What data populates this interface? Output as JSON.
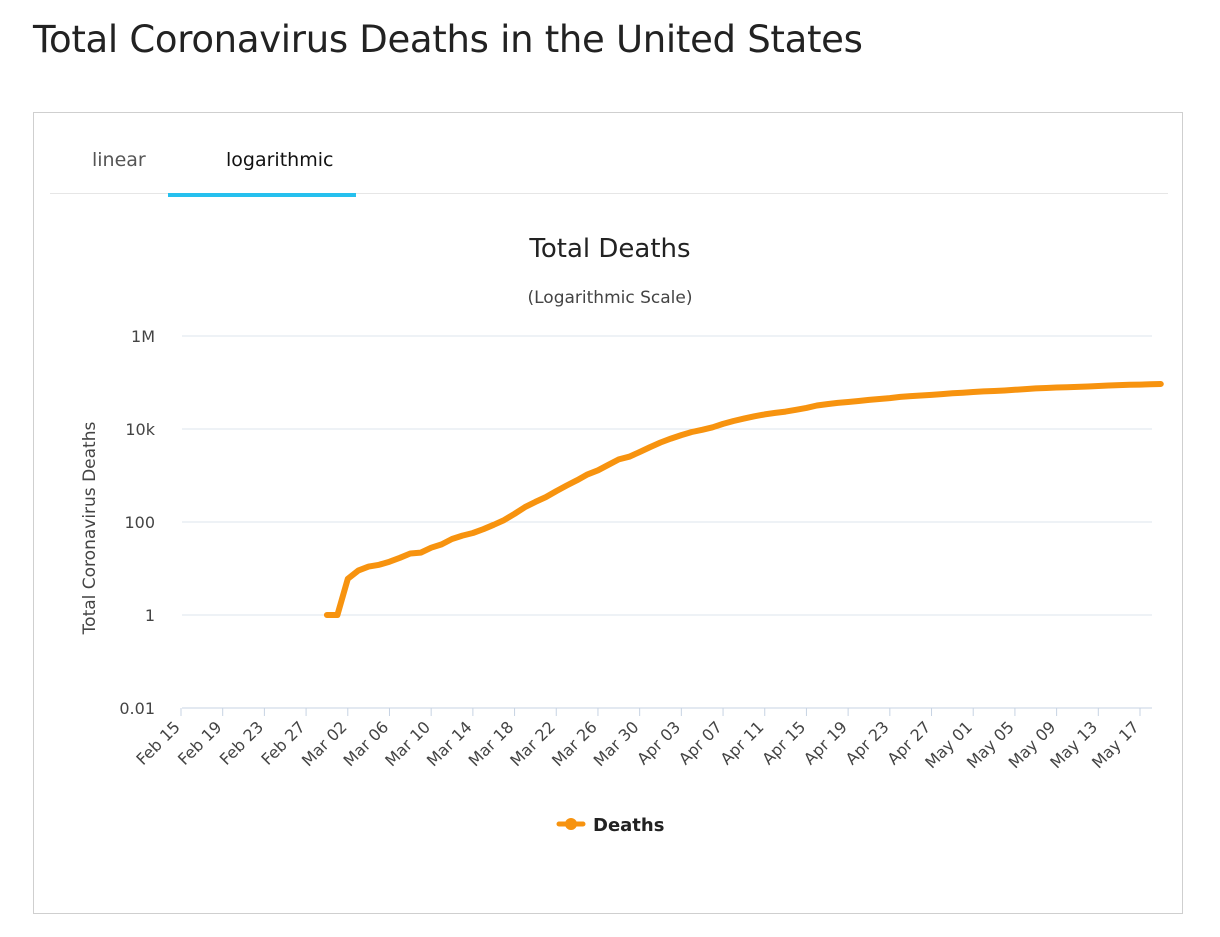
{
  "page": {
    "title": "Total Coronavirus Deaths in the United States"
  },
  "tabs": [
    {
      "label": "linear",
      "active": false
    },
    {
      "label": "logarithmic",
      "active": true
    }
  ],
  "colors": {
    "series": "#f7930f",
    "tab_accent": "#26c0ee",
    "grid": "#dde4ee"
  },
  "chart_data": {
    "type": "line",
    "title": "Total Deaths",
    "subtitle": "(Logarithmic Scale)",
    "ylabel": "Total Coronavirus Deaths",
    "xlabel": "",
    "yscale": "log",
    "ylim": [
      0.01,
      1000000
    ],
    "y_ticks": [
      {
        "value": 1000000,
        "label": "1M"
      },
      {
        "value": 10000,
        "label": "10k"
      },
      {
        "value": 100,
        "label": "100"
      },
      {
        "value": 1,
        "label": "1"
      },
      {
        "value": 0.01,
        "label": "0.01"
      }
    ],
    "x_ticks": [
      "Feb 15",
      "Feb 19",
      "Feb 23",
      "Feb 27",
      "Mar 02",
      "Mar 06",
      "Mar 10",
      "Mar 14",
      "Mar 18",
      "Mar 22",
      "Mar 26",
      "Mar 30",
      "Apr 03",
      "Apr 07",
      "Apr 11",
      "Apr 15",
      "Apr 19",
      "Apr 23",
      "Apr 27",
      "May 01",
      "May 05",
      "May 09",
      "May 13",
      "May 17"
    ],
    "grid": true,
    "legend": "bottom-center",
    "series": [
      {
        "name": "Deaths",
        "x": [
          "Feb 29",
          "Mar 01",
          "Mar 02",
          "Mar 03",
          "Mar 04",
          "Mar 05",
          "Mar 06",
          "Mar 07",
          "Mar 08",
          "Mar 09",
          "Mar 10",
          "Mar 11",
          "Mar 12",
          "Mar 13",
          "Mar 14",
          "Mar 15",
          "Mar 16",
          "Mar 17",
          "Mar 18",
          "Mar 19",
          "Mar 20",
          "Mar 21",
          "Mar 22",
          "Mar 23",
          "Mar 24",
          "Mar 25",
          "Mar 26",
          "Mar 27",
          "Mar 28",
          "Mar 29",
          "Mar 30",
          "Mar 31",
          "Apr 01",
          "Apr 02",
          "Apr 03",
          "Apr 04",
          "Apr 05",
          "Apr 06",
          "Apr 07",
          "Apr 08",
          "Apr 09",
          "Apr 10",
          "Apr 11",
          "Apr 12",
          "Apr 13",
          "Apr 14",
          "Apr 15",
          "Apr 16",
          "Apr 17",
          "Apr 18",
          "Apr 19",
          "Apr 20",
          "Apr 21",
          "Apr 22",
          "Apr 23",
          "Apr 24",
          "Apr 25",
          "Apr 26",
          "Apr 27",
          "Apr 28",
          "Apr 29",
          "Apr 30",
          "May 01",
          "May 02",
          "May 03",
          "May 04",
          "May 05",
          "May 06",
          "May 07",
          "May 08",
          "May 09",
          "May 10",
          "May 11",
          "May 12",
          "May 13",
          "May 14",
          "May 15",
          "May 16",
          "May 17",
          "May 18",
          "May 19"
        ],
        "y": [
          1,
          1,
          6,
          9,
          11,
          12,
          14,
          17,
          21,
          22,
          28,
          33,
          43,
          51,
          58,
          70,
          87,
          110,
          150,
          209,
          270,
          344,
          463,
          608,
          792,
          1054,
          1295,
          1695,
          2218,
          2543,
          3200,
          4084,
          5118,
          6228,
          7394,
          8639,
          9615,
          10860,
          12874,
          14829,
          16742,
          18737,
          20652,
          22161,
          23690,
          25867,
          28435,
          32000,
          34400,
          36400,
          38100,
          40100,
          42200,
          44100,
          46300,
          49100,
          51000,
          52600,
          54000,
          56300,
          58500,
          60400,
          62500,
          64300,
          65600,
          67400,
          69700,
          72200,
          74500,
          76300,
          77900,
          79000,
          80400,
          82100,
          84000,
          86000,
          87800,
          89200,
          90300,
          91300,
          92800
        ]
      }
    ]
  }
}
